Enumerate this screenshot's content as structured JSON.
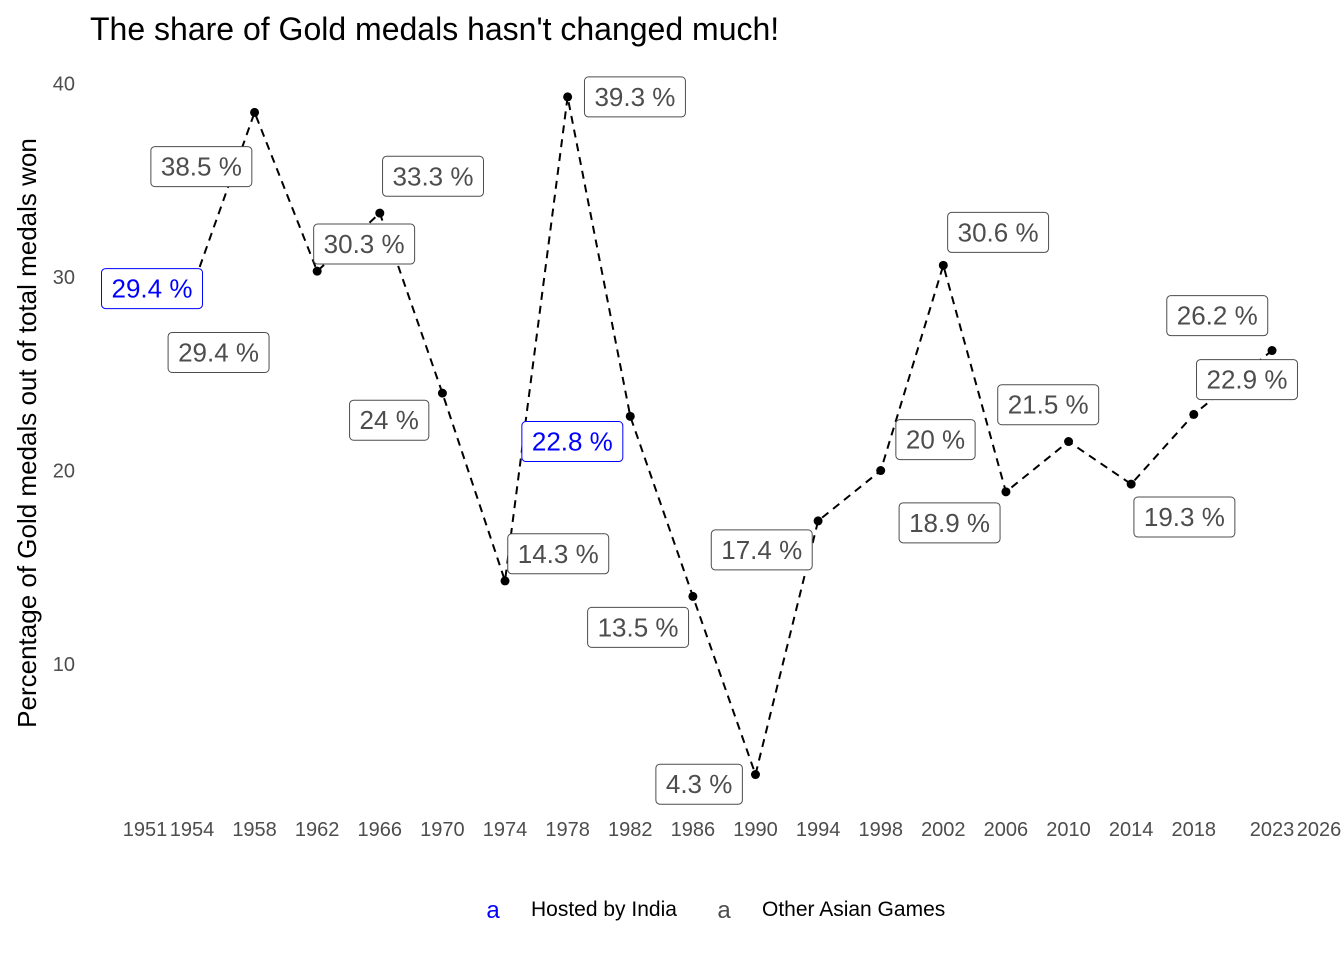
{
  "chart_data": {
    "type": "line",
    "title": "The share of Gold medals hasn't changed much!",
    "xlabel": "",
    "ylabel": "Percentage of Gold medals out of total medals won",
    "ylim": [
      3.5,
      41
    ],
    "yticks": [
      10,
      20,
      30,
      40
    ],
    "xticks": [
      1951,
      1954,
      1958,
      1962,
      1966,
      1970,
      1974,
      1978,
      1982,
      1986,
      1990,
      1994,
      1998,
      2002,
      2006,
      2010,
      2014,
      2018,
      2023,
      2026
    ],
    "grid": false,
    "line_style": "dashed",
    "colors": {
      "hosted": "#0000ff",
      "other": "#4d4d4d",
      "line": "#000000"
    },
    "legend": {
      "position": "bottom",
      "key_glyph": "a",
      "items": [
        {
          "label": "Hosted by India",
          "color": "#0000ff"
        },
        {
          "label": "Other Asian Games",
          "color": "#4d4d4d"
        }
      ]
    },
    "points": [
      {
        "x": 1951,
        "y": 29.4,
        "label": "29.4 %",
        "group": "hosted",
        "dx": 8,
        "dy": 29.4
      },
      {
        "x": 1954,
        "y": 29.4,
        "label": "29.4 %",
        "group": "other",
        "dx": 1955.7,
        "dy": 26.1
      },
      {
        "x": 1958,
        "y": 38.5,
        "label": "38.5 %",
        "group": "other",
        "dx": 1954.6,
        "dy": 35.7
      },
      {
        "x": 1962,
        "y": 30.3,
        "label": "30.3 %",
        "group": "other",
        "dx": 1965,
        "dy": 31.7
      },
      {
        "x": 1966,
        "y": 33.3,
        "label": "33.3 %",
        "group": "other",
        "dx": 1969.4,
        "dy": 35.2
      },
      {
        "x": 1970,
        "y": 24,
        "label": "24 %",
        "group": "other",
        "dx": 1966.6,
        "dy": 22.6
      },
      {
        "x": 1974,
        "y": 14.3,
        "label": "14.3 %",
        "group": "other",
        "dx": 1977.4,
        "dy": 15.7
      },
      {
        "x": 1978,
        "y": 39.3,
        "label": "39.3 %",
        "group": "other",
        "dx": 1982.3,
        "dy": 39.3
      },
      {
        "x": 1982,
        "y": 22.8,
        "label": "22.8 %",
        "group": "hosted",
        "dx": 1978.3,
        "dy": 21.5
      },
      {
        "x": 1986,
        "y": 13.5,
        "label": "13.5 %",
        "group": "other",
        "dx": 1982.5,
        "dy": 11.9
      },
      {
        "x": 1990,
        "y": 4.3,
        "label": "4.3 %",
        "group": "other",
        "dx": 1986.4,
        "dy": 3.8
      },
      {
        "x": 1994,
        "y": 17.4,
        "label": "17.4 %",
        "group": "other",
        "dx": 1990.4,
        "dy": 15.9
      },
      {
        "x": 1998,
        "y": 20,
        "label": "20 %",
        "group": "other",
        "dx": 2001.5,
        "dy": 21.6
      },
      {
        "x": 2002,
        "y": 30.6,
        "label": "30.6 %",
        "group": "other",
        "dx": 2005.5,
        "dy": 32.3
      },
      {
        "x": 2006,
        "y": 18.9,
        "label": "18.9 %",
        "group": "other",
        "dx": 2002.4,
        "dy": 17.3
      },
      {
        "x": 2010,
        "y": 21.5,
        "label": "21.5 %",
        "group": "other",
        "dx": 2008.7,
        "dy": 23.4
      },
      {
        "x": 2014,
        "y": 19.3,
        "label": "19.3 %",
        "group": "other",
        "dx": 2017.4,
        "dy": 17.6
      },
      {
        "x": 2018,
        "y": 22.9,
        "label": "22.9 %",
        "group": "other",
        "dx": 2021.4,
        "dy": 24.7
      },
      {
        "x": 2023,
        "y": 26.2,
        "label": "26.2 %",
        "group": "other",
        "dx": 2019.5,
        "dy": 28
      }
    ]
  }
}
